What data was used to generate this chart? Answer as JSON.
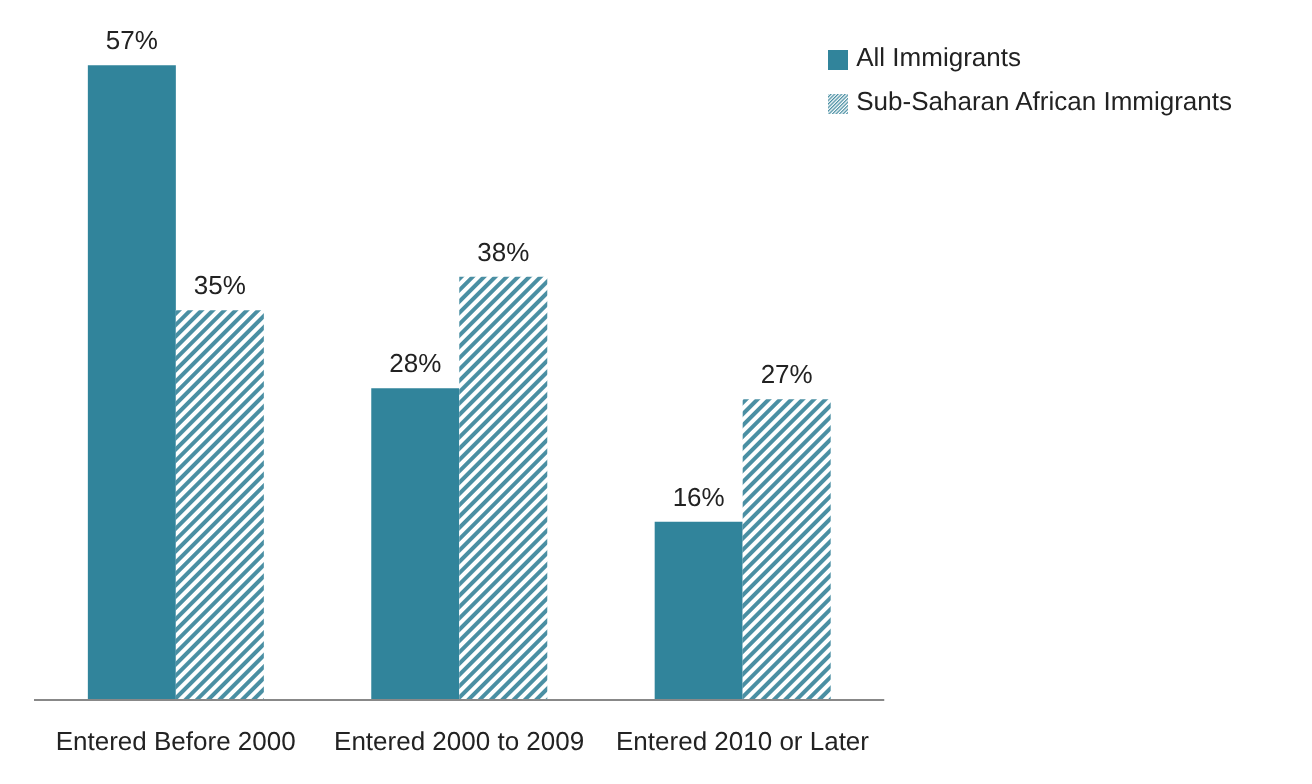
{
  "chart_data": {
    "type": "bar",
    "categories": [
      "Entered Before 2000",
      "Entered 2000 to 2009",
      "Entered 2010 or Later"
    ],
    "series": [
      {
        "name": "All Immigrants",
        "color": "#31849b",
        "values": [
          57,
          28,
          16
        ],
        "value_labels": [
          "57%",
          "28%",
          "16%"
        ]
      },
      {
        "name": "Sub-Saharan African Immigrants",
        "color": "#4a8fa3",
        "values": [
          35,
          38,
          27
        ],
        "value_labels": [
          "35%",
          "38%",
          "27%"
        ]
      }
    ],
    "legend": "top right",
    "grid": false
  }
}
